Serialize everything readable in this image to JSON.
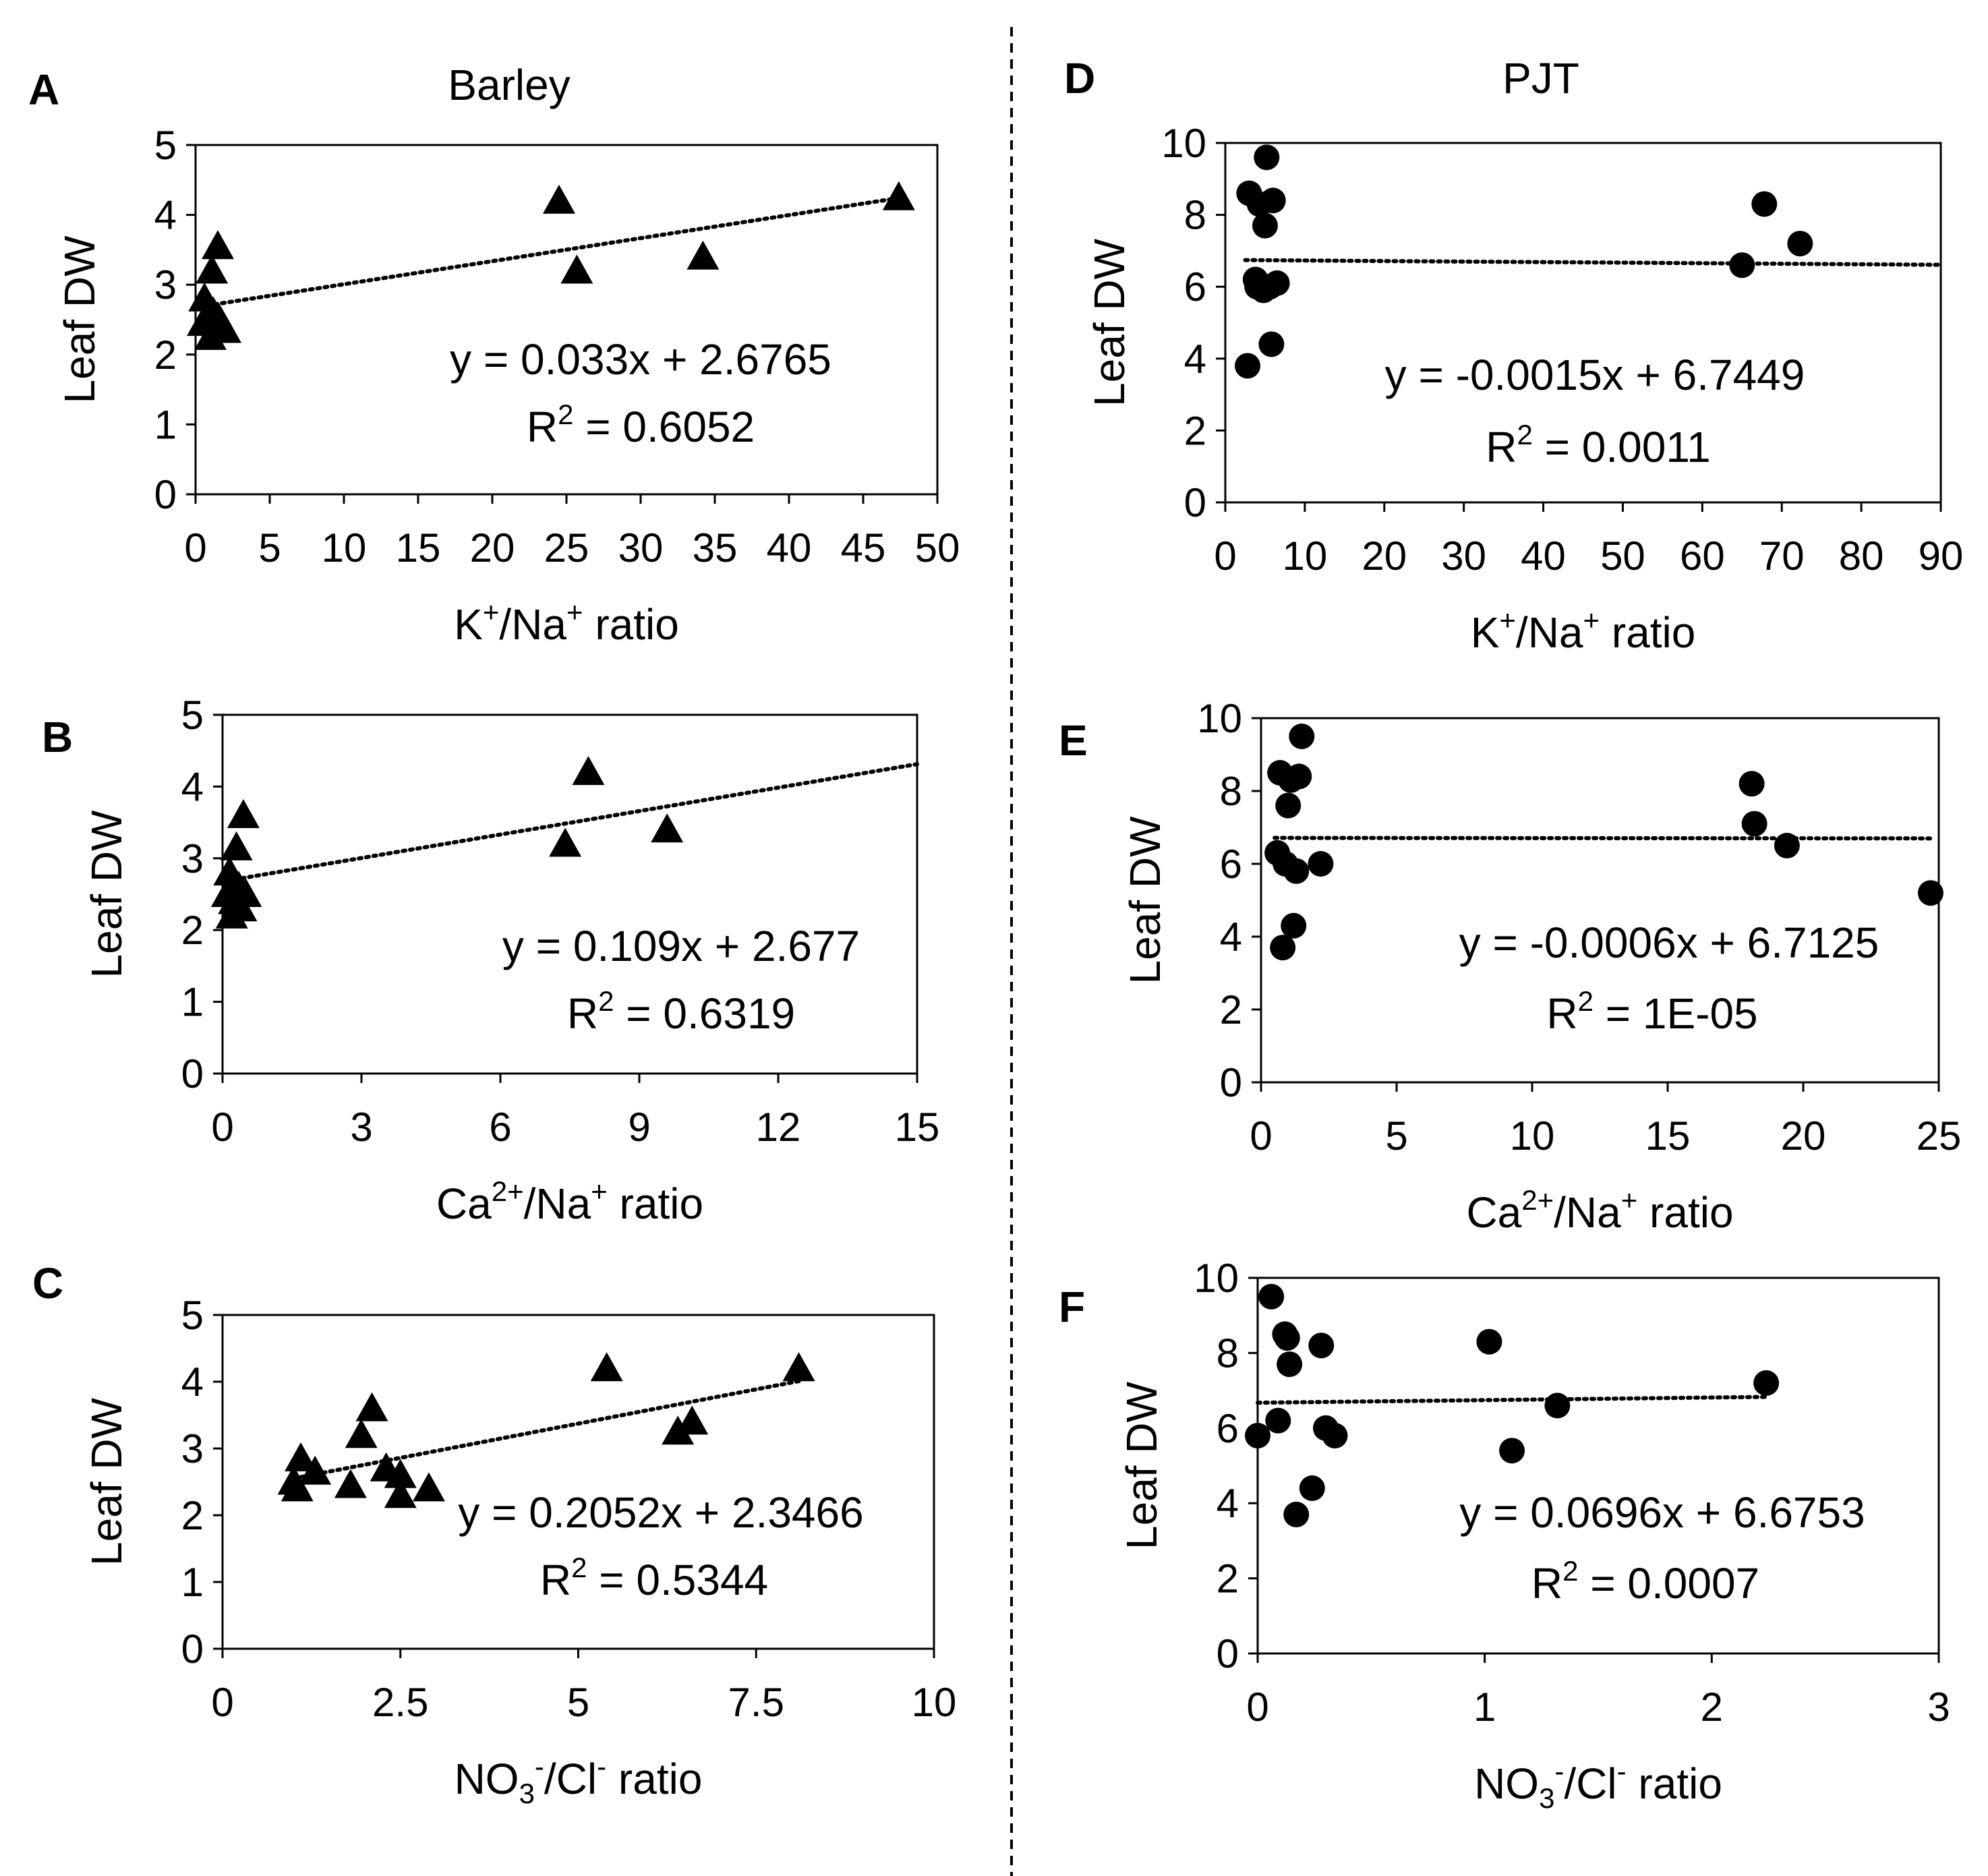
{
  "figure": {
    "titles": {
      "left": "Barley",
      "right": "PJT"
    },
    "colors": {
      "marker": "#000000",
      "frame": "#000000",
      "divider": "#000000"
    }
  },
  "chart_data": [
    {
      "id": "A",
      "panel_label": "A",
      "type": "scatter",
      "marker": "triangle",
      "ylabel": "Leaf DW",
      "xlabel": {
        "pre": "K",
        "sup1": "+",
        "mid": "/Na",
        "sup2": "+",
        "post": " ratio"
      },
      "xlim": [
        0,
        50
      ],
      "xticks": [
        0,
        5,
        10,
        15,
        20,
        25,
        30,
        35,
        40,
        45,
        50
      ],
      "ylim": [
        0,
        5
      ],
      "yticks": [
        0,
        1,
        2,
        3,
        4,
        5
      ],
      "equation": "y = 0.033x + 2.6765",
      "r2_prefix": "R",
      "r2_sup": "2",
      "r2_value": " = 0.6052",
      "trend": {
        "slope": 0.033,
        "intercept": 2.6765,
        "x_range": [
          0.3,
          47.5
        ]
      },
      "points": [
        {
          "x": 0.5,
          "y": 2.45
        },
        {
          "x": 0.6,
          "y": 2.8
        },
        {
          "x": 0.8,
          "y": 2.55
        },
        {
          "x": 1.0,
          "y": 2.25
        },
        {
          "x": 1.1,
          "y": 3.2
        },
        {
          "x": 1.2,
          "y": 2.6
        },
        {
          "x": 1.3,
          "y": 2.35
        },
        {
          "x": 1.5,
          "y": 3.55
        },
        {
          "x": 1.6,
          "y": 2.5
        },
        {
          "x": 2.0,
          "y": 2.35
        },
        {
          "x": 24.5,
          "y": 4.2
        },
        {
          "x": 25.7,
          "y": 3.2
        },
        {
          "x": 34.2,
          "y": 3.4
        },
        {
          "x": 47.4,
          "y": 4.25
        }
      ]
    },
    {
      "id": "B",
      "panel_label": "B",
      "type": "scatter",
      "marker": "triangle",
      "ylabel": "Leaf DW",
      "xlabel": {
        "pre": "Ca",
        "sup1": "2+",
        "mid": "/Na",
        "sup2": "+",
        "post": " ratio"
      },
      "xlim": [
        0,
        15
      ],
      "xticks": [
        0,
        3,
        6,
        9,
        12,
        15
      ],
      "ylim": [
        0,
        5
      ],
      "yticks": [
        0,
        1,
        2,
        3,
        4,
        5
      ],
      "equation": "y = 0.109x + 2.677",
      "r2_prefix": "R",
      "r2_sup": "2",
      "r2_value": " = 0.6319",
      "trend": {
        "slope": 0.109,
        "intercept": 2.677,
        "x_range": [
          0.1,
          15
        ]
      },
      "points": [
        {
          "x": 0.1,
          "y": 2.5
        },
        {
          "x": 0.15,
          "y": 2.8
        },
        {
          "x": 0.2,
          "y": 2.2
        },
        {
          "x": 0.22,
          "y": 2.55
        },
        {
          "x": 0.25,
          "y": 2.4
        },
        {
          "x": 0.3,
          "y": 3.15
        },
        {
          "x": 0.35,
          "y": 2.6
        },
        {
          "x": 0.4,
          "y": 2.3
        },
        {
          "x": 0.45,
          "y": 3.6
        },
        {
          "x": 0.5,
          "y": 2.5
        },
        {
          "x": 7.4,
          "y": 3.2
        },
        {
          "x": 7.9,
          "y": 4.2
        },
        {
          "x": 9.6,
          "y": 3.4
        }
      ]
    },
    {
      "id": "C",
      "panel_label": "C",
      "type": "scatter",
      "marker": "triangle",
      "ylabel": "Leaf DW",
      "xlabel": {
        "pre": "NO",
        "sub1": "3",
        "sup1": "-",
        "mid": "/Cl",
        "sup2": "-",
        "post": " ratio"
      },
      "xlim": [
        0,
        10
      ],
      "xticks": [
        0,
        2.5,
        5,
        7.5,
        10
      ],
      "ylim": [
        0,
        5
      ],
      "yticks": [
        0,
        1,
        2,
        3,
        4,
        5
      ],
      "equation": "y = 0.2052x + 2.3466",
      "r2_prefix": "R",
      "r2_sup": "2",
      "r2_value": " = 0.5344",
      "trend": {
        "slope": 0.2052,
        "intercept": 2.3466,
        "x_range": [
          1.0,
          8.1
        ]
      },
      "points": [
        {
          "x": 1.0,
          "y": 2.5
        },
        {
          "x": 1.05,
          "y": 2.4
        },
        {
          "x": 1.1,
          "y": 2.85
        },
        {
          "x": 1.3,
          "y": 2.65
        },
        {
          "x": 1.8,
          "y": 2.45
        },
        {
          "x": 1.95,
          "y": 3.2
        },
        {
          "x": 2.1,
          "y": 3.6
        },
        {
          "x": 2.3,
          "y": 2.7
        },
        {
          "x": 2.5,
          "y": 2.6
        },
        {
          "x": 2.5,
          "y": 2.3
        },
        {
          "x": 2.9,
          "y": 2.4
        },
        {
          "x": 5.4,
          "y": 4.2
        },
        {
          "x": 6.4,
          "y": 3.25
        },
        {
          "x": 6.6,
          "y": 3.4
        },
        {
          "x": 8.1,
          "y": 4.2
        }
      ]
    },
    {
      "id": "D",
      "panel_label": "D",
      "type": "scatter",
      "marker": "circle",
      "ylabel": "Leaf DW",
      "xlabel": {
        "pre": "K",
        "sup1": "+",
        "mid": "/Na",
        "sup2": "+",
        "post": " ratio"
      },
      "xlim": [
        0,
        90
      ],
      "xticks": [
        0,
        10,
        20,
        30,
        40,
        50,
        60,
        70,
        80,
        90
      ],
      "ylim": [
        0,
        10
      ],
      "yticks": [
        0,
        2,
        4,
        6,
        8,
        10
      ],
      "equation": "y = -0.0015x + 6.7449",
      "r2_prefix": "R",
      "r2_sup": "2",
      "r2_value": " = 0.0011",
      "trend": {
        "slope": -0.0015,
        "intercept": 6.7449,
        "x_range": [
          2.5,
          90
        ]
      },
      "points": [
        {
          "x": 2.8,
          "y": 3.8
        },
        {
          "x": 3.0,
          "y": 8.6
        },
        {
          "x": 3.8,
          "y": 6.2
        },
        {
          "x": 4.0,
          "y": 6.0
        },
        {
          "x": 4.3,
          "y": 8.3
        },
        {
          "x": 4.8,
          "y": 5.9
        },
        {
          "x": 5.0,
          "y": 7.7
        },
        {
          "x": 5.2,
          "y": 9.6
        },
        {
          "x": 5.6,
          "y": 6.0
        },
        {
          "x": 5.8,
          "y": 4.4
        },
        {
          "x": 6.0,
          "y": 8.4
        },
        {
          "x": 6.5,
          "y": 6.1
        },
        {
          "x": 65.0,
          "y": 6.6
        },
        {
          "x": 67.8,
          "y": 8.3
        },
        {
          "x": 72.3,
          "y": 7.2
        }
      ]
    },
    {
      "id": "E",
      "panel_label": "E",
      "type": "scatter",
      "marker": "circle",
      "ylabel": "Leaf DW",
      "xlabel": {
        "pre": "Ca",
        "sup1": "2+",
        "mid": "/Na",
        "sup2": "+",
        "post": " ratio"
      },
      "xlim": [
        0,
        25
      ],
      "xticks": [
        0,
        5,
        10,
        15,
        20,
        25
      ],
      "ylim": [
        0,
        10
      ],
      "yticks": [
        0,
        2,
        4,
        6,
        8,
        10
      ],
      "equation": "y = -0.0006x + 6.7125",
      "r2_prefix": "R",
      "r2_sup": "2",
      "r2_value": " = 1E-05",
      "trend": {
        "slope": -0.0006,
        "intercept": 6.7125,
        "x_range": [
          0.5,
          24.7
        ]
      },
      "points": [
        {
          "x": 0.6,
          "y": 6.3
        },
        {
          "x": 0.7,
          "y": 8.5
        },
        {
          "x": 0.8,
          "y": 3.7
        },
        {
          "x": 0.9,
          "y": 6.0
        },
        {
          "x": 1.0,
          "y": 7.6
        },
        {
          "x": 1.1,
          "y": 8.3
        },
        {
          "x": 1.2,
          "y": 4.3
        },
        {
          "x": 1.3,
          "y": 5.8
        },
        {
          "x": 1.4,
          "y": 8.4
        },
        {
          "x": 1.5,
          "y": 9.5
        },
        {
          "x": 2.2,
          "y": 6.0
        },
        {
          "x": 18.1,
          "y": 8.2
        },
        {
          "x": 18.2,
          "y": 7.1
        },
        {
          "x": 19.4,
          "y": 6.5
        },
        {
          "x": 24.7,
          "y": 5.2
        }
      ]
    },
    {
      "id": "F",
      "panel_label": "F",
      "type": "scatter",
      "marker": "circle",
      "ylabel": "Leaf DW",
      "xlabel": {
        "pre": "NO",
        "sub1": "3",
        "sup1": "-",
        "mid": "/Cl",
        "sup2": "-",
        "post": " ratio"
      },
      "xlim": [
        0,
        3
      ],
      "xticks": [
        0,
        1,
        2,
        3
      ],
      "ylim": [
        0,
        10
      ],
      "yticks": [
        0,
        2,
        4,
        6,
        8,
        10
      ],
      "equation": "y = 0.0696x + 6.6753",
      "r2_prefix": "R",
      "r2_sup": "2",
      "r2_value": " = 0.0007",
      "trend": {
        "slope": 0.0696,
        "intercept": 6.6753,
        "x_range": [
          0.0,
          2.25
        ]
      },
      "points": [
        {
          "x": 0.0,
          "y": 5.8
        },
        {
          "x": 0.06,
          "y": 9.5
        },
        {
          "x": 0.09,
          "y": 6.2
        },
        {
          "x": 0.12,
          "y": 8.5
        },
        {
          "x": 0.13,
          "y": 8.4
        },
        {
          "x": 0.14,
          "y": 7.7
        },
        {
          "x": 0.17,
          "y": 3.7
        },
        {
          "x": 0.24,
          "y": 4.4
        },
        {
          "x": 0.28,
          "y": 8.2
        },
        {
          "x": 0.3,
          "y": 6.0
        },
        {
          "x": 0.34,
          "y": 5.8
        },
        {
          "x": 1.02,
          "y": 8.3
        },
        {
          "x": 1.12,
          "y": 5.4
        },
        {
          "x": 1.32,
          "y": 6.6
        },
        {
          "x": 2.24,
          "y": 7.2
        }
      ]
    }
  ]
}
